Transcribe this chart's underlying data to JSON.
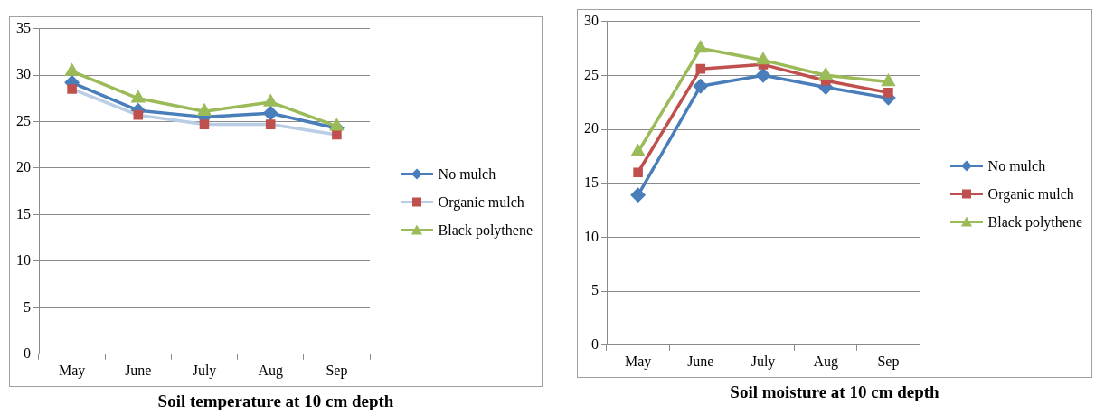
{
  "chart_data": [
    {
      "type": "line",
      "title": "Soil temperature at 10 cm depth",
      "categories": [
        "May",
        "June",
        "July",
        "Aug",
        "Sep"
      ],
      "ylim": [
        0,
        35
      ],
      "yticks": [
        0,
        5,
        10,
        15,
        20,
        25,
        30,
        35
      ],
      "grid": "y",
      "legend": "right",
      "series": [
        {
          "name": "No mulch",
          "color": "#4a7ebb",
          "marker": "diamond",
          "values": [
            29.2,
            26.2,
            25.5,
            25.9,
            24.3
          ]
        },
        {
          "name": "Organic mulch",
          "color": "#b9cde5",
          "colors": [
            "#c0504d",
            "#c0504d",
            "#c0504d",
            "#c0504d",
            "#c0504d"
          ],
          "marker": "square",
          "values": [
            28.5,
            25.7,
            24.7,
            24.7,
            23.6
          ]
        },
        {
          "name": "Black polythene",
          "color": "#9bbb59",
          "marker": "triangle",
          "values": [
            30.4,
            27.5,
            26.1,
            27.1,
            24.5
          ]
        }
      ]
    },
    {
      "type": "line",
      "title": "Soil moisture at 10 cm depth",
      "categories": [
        "May",
        "June",
        "July",
        "Aug",
        "Sep"
      ],
      "ylim": [
        0,
        30
      ],
      "yticks": [
        0,
        5,
        10,
        15,
        20,
        25,
        30
      ],
      "grid": "y",
      "legend": "right",
      "series": [
        {
          "name": "No mulch",
          "color": "#4a7ebb",
          "marker": "diamond",
          "values": [
            13.9,
            24.0,
            25.0,
            23.9,
            22.9
          ]
        },
        {
          "name": "Organic mulch",
          "color": "#c0504d",
          "marker": "square",
          "values": [
            16.0,
            25.6,
            26.0,
            24.5,
            23.4
          ]
        },
        {
          "name": "Black polythene",
          "color": "#9bbb59",
          "marker": "triangle",
          "values": [
            17.9,
            27.5,
            26.4,
            25.0,
            24.4
          ]
        }
      ]
    }
  ]
}
